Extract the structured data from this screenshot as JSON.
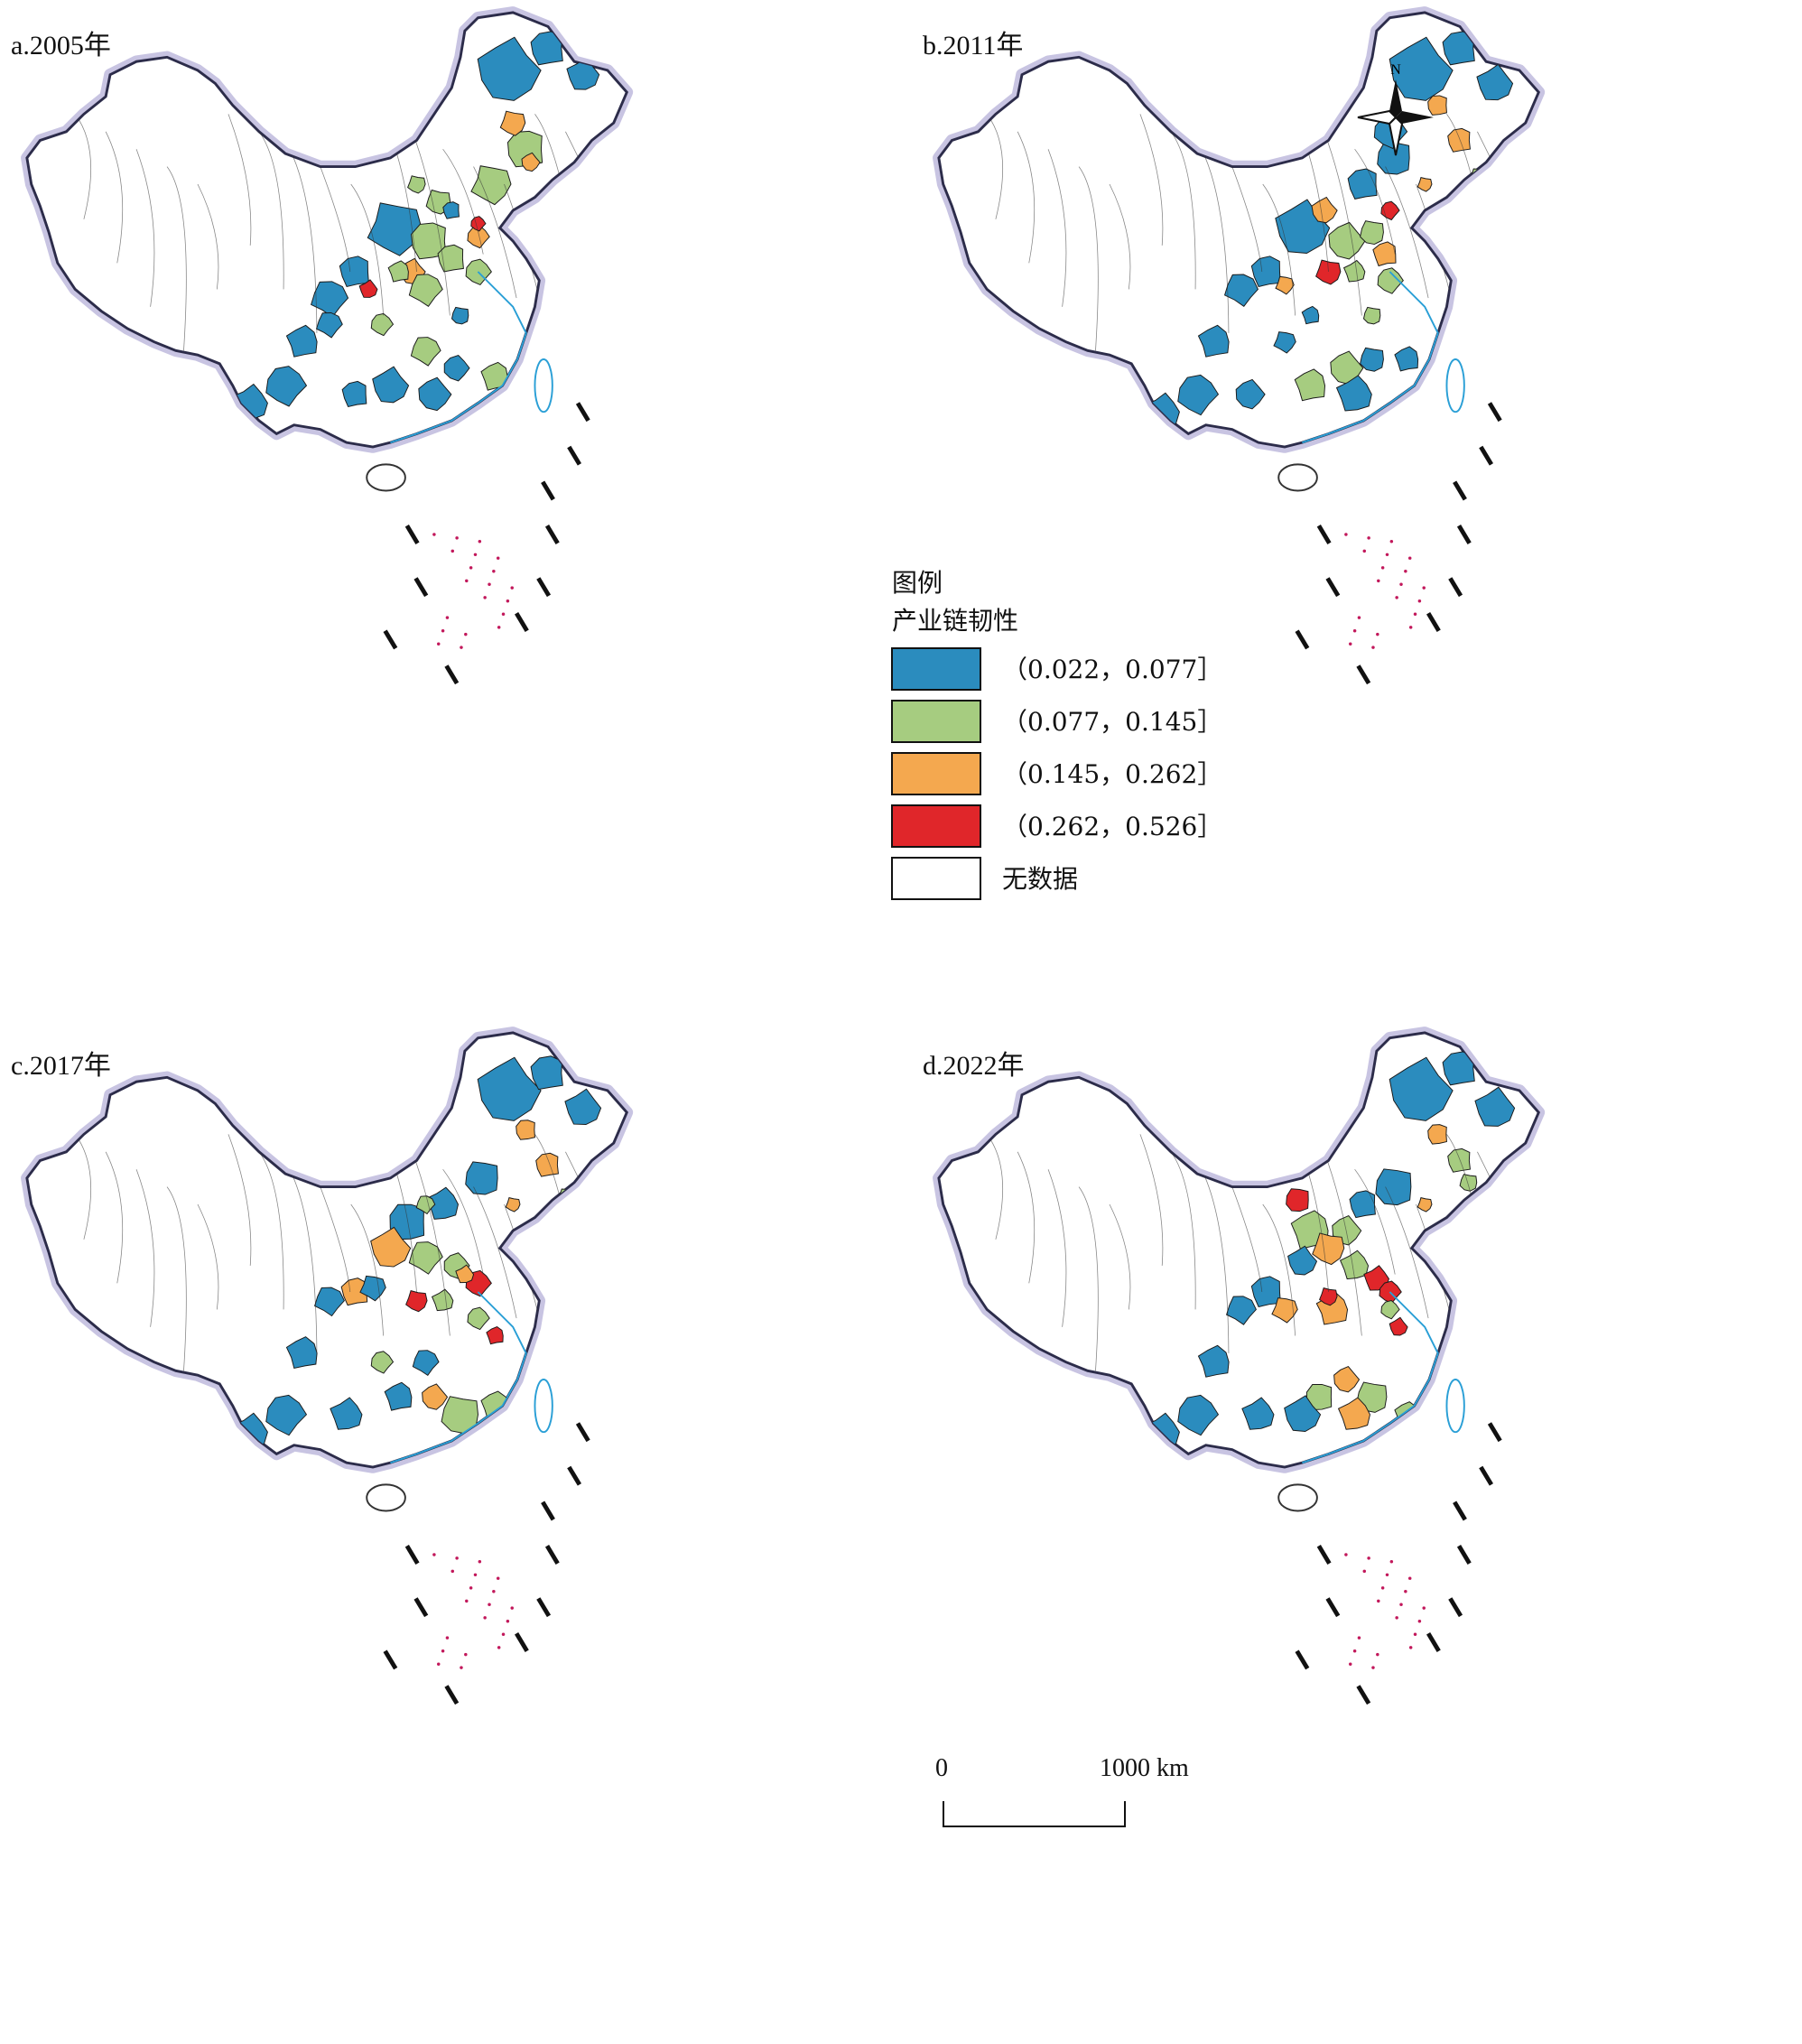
{
  "figure": {
    "panels": [
      {
        "label": "a.2005年"
      },
      {
        "label": "b.2011年"
      },
      {
        "label": "c.2017年"
      },
      {
        "label": "d.2022年"
      }
    ],
    "legend": {
      "title": "图例",
      "subtitle": "产业链韧性",
      "classes": [
        {
          "label": "（0.022，0.077］",
          "color": "#2b8cbe"
        },
        {
          "label": "（0.077，0.145］",
          "color": "#a6cc80"
        },
        {
          "label": "（0.145，0.262］",
          "color": "#f4a84f"
        },
        {
          "label": "（0.262，0.526］",
          "color": "#e0262a"
        },
        {
          "label": "无数据",
          "color": "#ffffff"
        }
      ]
    },
    "north_arrow": {
      "letter": "N"
    },
    "scale_bar": {
      "start": "0",
      "end": "1000 km"
    }
  }
}
